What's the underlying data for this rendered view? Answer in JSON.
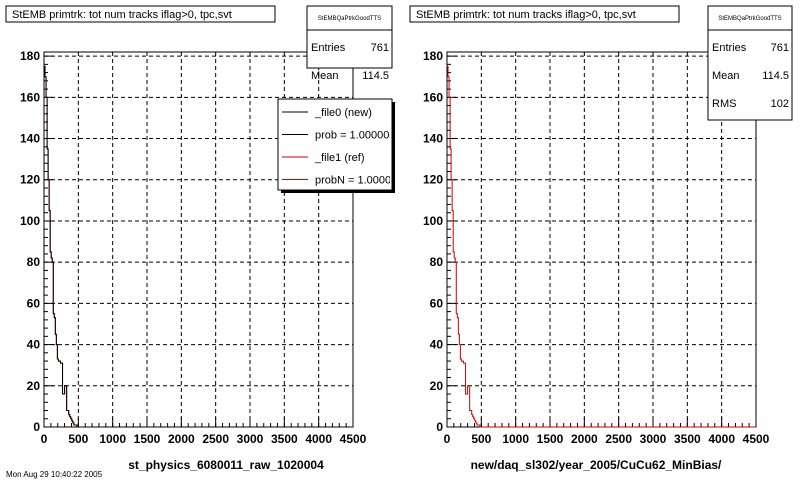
{
  "colors": {
    "file0": "#000000",
    "file1": "#cc0000",
    "grid": "#000000",
    "frame": "#000000",
    "background": "#ffffff"
  },
  "footer_text": "Mon Aug 29 10:40:22 2005",
  "chart_data": [
    {
      "type": "line",
      "step": true,
      "title": "StEMB primtrk: tot num tracks iflag>0, tpc,svt",
      "xlabel": "st_physics_6080011_raw_1020004",
      "ylabel": "",
      "xlim": [
        0,
        4500
      ],
      "ylim": [
        0,
        182
      ],
      "xticks": [
        0,
        500,
        1000,
        1500,
        2000,
        2500,
        3000,
        3500,
        4000,
        4500
      ],
      "yticks": [
        0,
        20,
        40,
        60,
        80,
        100,
        120,
        140,
        160,
        180
      ],
      "grid": true,
      "stats": {
        "name": "StEMBQaPtrkGoodTTS",
        "rows": [
          {
            "label": "Entries",
            "value": "761"
          },
          {
            "label": "Mean",
            "value": "114.5"
          }
        ]
      },
      "legend": {
        "position": "top-right",
        "entries": [
          {
            "label": "_file0 (new)",
            "color": "#000000"
          },
          {
            "label": "prob = 1.000000",
            "color": "#000000"
          },
          {
            "label": "_file1 (ref)",
            "color": "#cc0000"
          },
          {
            "label": "probN = 1.000000",
            "color": "#cc0000"
          }
        ]
      },
      "series": [
        {
          "color": "#cc0000",
          "x": [
            0,
            15,
            30,
            45,
            60,
            75,
            90,
            105,
            120,
            135,
            150,
            165,
            180,
            195,
            210,
            225,
            240,
            255,
            270,
            285,
            300,
            315,
            330,
            345,
            360,
            375,
            390,
            405,
            420,
            435,
            450,
            465,
            480,
            4500
          ],
          "y": [
            175,
            170,
            160,
            135,
            120,
            105,
            85,
            82,
            80,
            55,
            53,
            45,
            40,
            33,
            32,
            32,
            31,
            31,
            16,
            16,
            20,
            20,
            8,
            8,
            6,
            5,
            4,
            3,
            2,
            1,
            1,
            1,
            0,
            0
          ]
        },
        {
          "color": "#000000",
          "x": [
            0,
            15,
            30,
            45,
            60,
            75,
            90,
            105,
            120,
            135,
            150,
            165,
            180,
            195,
            210,
            225,
            240,
            255,
            270,
            285,
            300,
            315,
            330,
            345,
            360,
            375,
            390,
            405,
            420,
            435,
            450,
            465,
            480,
            4500
          ],
          "y": [
            175,
            170,
            160,
            135,
            120,
            105,
            85,
            82,
            80,
            55,
            53,
            45,
            40,
            33,
            32,
            32,
            31,
            31,
            16,
            16,
            20,
            20,
            8,
            8,
            6,
            5,
            4,
            3,
            2,
            1,
            1,
            1,
            0,
            0
          ]
        }
      ]
    },
    {
      "type": "line",
      "step": true,
      "title": "StEMB primtrk: tot num tracks iflag>0, tpc,svt",
      "xlabel": "new/daq_sl302/year_2005/CuCu62_MinBias/",
      "ylabel": "",
      "xlim": [
        0,
        4500
      ],
      "ylim": [
        0,
        182
      ],
      "xticks": [
        0,
        500,
        1000,
        1500,
        2000,
        2500,
        3000,
        3500,
        4000,
        4500
      ],
      "yticks": [
        0,
        20,
        40,
        60,
        80,
        100,
        120,
        140,
        160,
        180
      ],
      "grid": true,
      "stats": {
        "name": "StEMBQaPtrkGoodTTS",
        "rows": [
          {
            "label": "Entries",
            "value": "761"
          },
          {
            "label": "Mean",
            "value": "114.5"
          },
          {
            "label": "RMS",
            "value": "102"
          }
        ]
      },
      "series": [
        {
          "color": "#cc0000",
          "x": [
            0,
            15,
            30,
            45,
            60,
            75,
            90,
            105,
            120,
            135,
            150,
            165,
            180,
            195,
            210,
            225,
            240,
            255,
            270,
            285,
            300,
            315,
            330,
            345,
            360,
            375,
            390,
            405,
            420,
            435,
            450,
            465,
            480,
            4500
          ],
          "y": [
            175,
            170,
            160,
            135,
            120,
            105,
            85,
            82,
            80,
            55,
            53,
            45,
            40,
            33,
            32,
            32,
            31,
            31,
            16,
            16,
            20,
            20,
            8,
            8,
            6,
            5,
            4,
            3,
            2,
            1,
            1,
            1,
            0,
            0
          ]
        }
      ]
    }
  ]
}
